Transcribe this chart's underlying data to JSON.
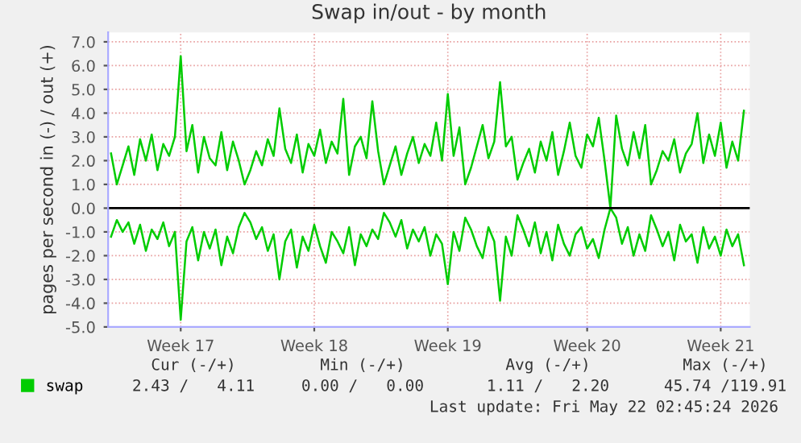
{
  "chart_data": {
    "type": "line",
    "title": "Swap in/out - by month",
    "ylabel": "pages per second in (-) / out (+)",
    "categories": [
      null,
      null,
      null,
      null,
      null,
      null,
      null,
      null,
      null,
      null,
      null,
      null,
      "Week 17",
      null,
      null,
      null,
      null,
      null,
      null,
      null,
      null,
      null,
      null,
      null,
      null,
      null,
      null,
      null,
      null,
      null,
      null,
      null,
      null,
      null,
      null,
      "Week 18",
      null,
      null,
      null,
      null,
      null,
      null,
      null,
      null,
      null,
      null,
      null,
      null,
      null,
      null,
      null,
      null,
      null,
      null,
      null,
      null,
      null,
      null,
      "Week 19",
      null,
      null,
      null,
      null,
      null,
      null,
      null,
      null,
      null,
      null,
      null,
      null,
      null,
      null,
      null,
      null,
      null,
      null,
      null,
      null,
      null,
      null,
      null,
      "Week 20",
      null,
      null,
      null,
      null,
      null,
      null,
      null,
      null,
      null,
      null,
      null,
      null,
      null,
      null,
      null,
      null,
      null,
      null,
      null,
      null,
      null,
      null,
      "Week 21",
      null,
      null,
      null,
      null
    ],
    "series": [
      {
        "name": "swap",
        "color": "#00cc00",
        "values": [
          2.3,
          1.0,
          1.8,
          2.6,
          1.4,
          2.9,
          2.0,
          3.1,
          1.6,
          2.7,
          2.2,
          3.0,
          6.4,
          2.4,
          3.5,
          1.5,
          3.0,
          2.1,
          1.8,
          3.2,
          1.6,
          2.8,
          2.0,
          1.0,
          1.6,
          2.4,
          1.8,
          2.9,
          2.2,
          4.2,
          2.5,
          1.9,
          3.1,
          1.5,
          2.7,
          2.2,
          3.3,
          1.9,
          2.8,
          2.3,
          4.6,
          1.4,
          2.6,
          3.0,
          2.1,
          4.5,
          2.4,
          1.0,
          1.8,
          2.6,
          1.4,
          2.3,
          3.0,
          1.9,
          2.7,
          2.2,
          3.6,
          2.0,
          4.8,
          2.2,
          3.4,
          1.0,
          1.7,
          2.6,
          3.5,
          2.1,
          2.8,
          5.3,
          2.6,
          3.0,
          1.2,
          1.9,
          2.5,
          1.5,
          2.8,
          2.0,
          3.2,
          1.4,
          2.4,
          3.6,
          2.2,
          1.7,
          3.1,
          2.6,
          3.8,
          2.0,
          0.0,
          3.9,
          2.5,
          1.8,
          3.2,
          2.1,
          3.5,
          1.0,
          1.6,
          2.4,
          2.0,
          2.9,
          1.5,
          2.3,
          2.7,
          4.0,
          1.9,
          3.1,
          2.2,
          3.6,
          1.7,
          2.8,
          2.0,
          4.1
        ]
      },
      {
        "color": "#00cc00",
        "values": [
          -1.2,
          -0.5,
          -1.0,
          -0.6,
          -1.5,
          -0.7,
          -1.8,
          -0.9,
          -1.3,
          -0.6,
          -1.6,
          -1.0,
          -4.7,
          -1.4,
          -0.8,
          -2.2,
          -1.0,
          -1.7,
          -0.9,
          -2.4,
          -1.2,
          -1.9,
          -0.8,
          -0.2,
          -0.6,
          -1.3,
          -0.8,
          -1.8,
          -1.1,
          -3.0,
          -1.4,
          -0.9,
          -2.5,
          -1.2,
          -1.8,
          -0.7,
          -1.6,
          -2.3,
          -1.0,
          -1.4,
          -1.9,
          -0.8,
          -2.4,
          -1.1,
          -1.6,
          -0.9,
          -1.3,
          -0.2,
          -0.6,
          -1.2,
          -0.5,
          -1.7,
          -0.9,
          -1.4,
          -0.8,
          -2.0,
          -1.1,
          -1.5,
          -3.2,
          -1.0,
          -1.8,
          -0.4,
          -0.9,
          -1.6,
          -2.1,
          -0.8,
          -1.4,
          -3.9,
          -1.2,
          -2.0,
          -0.3,
          -0.9,
          -1.6,
          -0.6,
          -1.9,
          -1.0,
          -2.2,
          -0.7,
          -1.5,
          -2.0,
          -1.1,
          -0.8,
          -1.7,
          -1.3,
          -2.1,
          -0.9,
          0.0,
          -0.4,
          -1.5,
          -0.8,
          -2.0,
          -1.1,
          -1.8,
          -0.3,
          -0.9,
          -1.6,
          -1.0,
          -2.2,
          -0.7,
          -1.4,
          -1.1,
          -2.3,
          -0.8,
          -1.7,
          -1.2,
          -2.0,
          -0.9,
          -1.6,
          -1.1,
          -2.4
        ]
      }
    ],
    "ylim": [
      -5,
      7.4
    ],
    "yticks": [
      {
        "value": -5,
        "label": "-5.0"
      },
      {
        "value": -4,
        "label": "-4.0"
      },
      {
        "value": -3,
        "label": "-3.0"
      },
      {
        "value": -2,
        "label": "-2.0"
      },
      {
        "value": -1,
        "label": "-1.0"
      },
      {
        "value": 0,
        "label": "0.0"
      },
      {
        "value": 1,
        "label": "1.0"
      },
      {
        "value": 2,
        "label": "2.0"
      },
      {
        "value": 3,
        "label": "3.0"
      },
      {
        "value": 4,
        "label": "4.0"
      },
      {
        "value": 5,
        "label": "5.0"
      },
      {
        "value": 6,
        "label": "6.0"
      },
      {
        "value": 7,
        "label": "7.0"
      }
    ],
    "ref_lines": [
      {
        "axis": "y",
        "value": 0,
        "color": "#000000"
      }
    ],
    "grid": true,
    "legend": "bottom left",
    "annotations": [
      "Cur (-/+)",
      "Min (-/+)",
      "Avg (-/+)",
      "Max (-/+)",
      "2.43 /   4.11",
      "0.00 /   0.00",
      "1.11 /   2.20",
      "45.74 /119.91",
      "Last update: Fri May 22 02:45:24 2026"
    ]
  }
}
